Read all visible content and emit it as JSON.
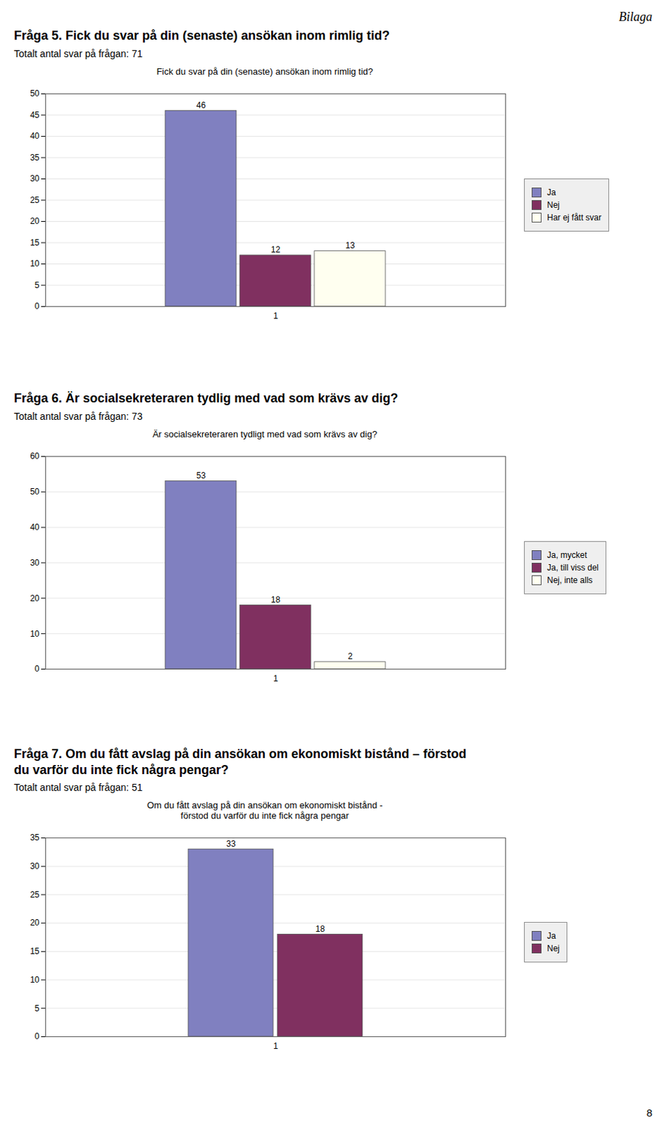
{
  "annotations": [
    "Bilaga",
    "8"
  ],
  "chart_data": [
    {
      "type": "bar",
      "title": "Fick du svar på din (senaste) ansökan inom rimlig tid?",
      "annotations": [
        "Fråga 5. Fick du svar på din (senaste) ansökan inom rimlig tid?",
        "Totalt antal svar på frågan: 71"
      ],
      "categories": [
        "1"
      ],
      "series": [
        {
          "name": "Ja",
          "values": [
            46
          ],
          "color": "#8080c0"
        },
        {
          "name": "Nej",
          "values": [
            12
          ],
          "color": "#803060"
        },
        {
          "name": "Har ej fått svar",
          "values": [
            13
          ],
          "color": "#fffff0"
        }
      ],
      "ylim": [
        0,
        50
      ],
      "yticks": [
        0,
        5,
        10,
        15,
        20,
        25,
        30,
        35,
        40,
        45,
        50
      ],
      "grid": true,
      "legend": "right",
      "data_labels": true
    },
    {
      "type": "bar",
      "title": "Är socialsekreteraren tydligt med vad som krävs av dig?",
      "annotations": [
        "Fråga 6. Är socialsekreteraren tydlig med vad som krävs av dig?",
        "Totalt antal svar på frågan: 73"
      ],
      "categories": [
        "1"
      ],
      "series": [
        {
          "name": "Ja, mycket",
          "values": [
            53
          ],
          "color": "#8080c0"
        },
        {
          "name": "Ja, till viss del",
          "values": [
            18
          ],
          "color": "#803060"
        },
        {
          "name": "Nej, inte alls",
          "values": [
            2
          ],
          "color": "#fffff0"
        }
      ],
      "ylim": [
        0,
        60
      ],
      "yticks": [
        0,
        10,
        20,
        30,
        40,
        50,
        60
      ],
      "grid": true,
      "legend": "right",
      "data_labels": true
    },
    {
      "type": "bar",
      "title": "Om du fått avslag på din ansökan om ekonomiskt bistånd -\nförstod du varför du inte fick några pengar",
      "annotations": [
        "Fråga 7. Om du fått avslag på din ansökan om ekonomiskt bistånd – förstod\ndu varför du inte fick några pengar?",
        "Totalt antal svar på frågan: 51"
      ],
      "categories": [
        "1"
      ],
      "series": [
        {
          "name": "Ja",
          "values": [
            33
          ],
          "color": "#8080c0"
        },
        {
          "name": "Nej",
          "values": [
            18
          ],
          "color": "#803060"
        }
      ],
      "ylim": [
        0,
        35
      ],
      "yticks": [
        0,
        5,
        10,
        15,
        20,
        25,
        30,
        35
      ],
      "grid": true,
      "legend": "right",
      "data_labels": true
    }
  ]
}
